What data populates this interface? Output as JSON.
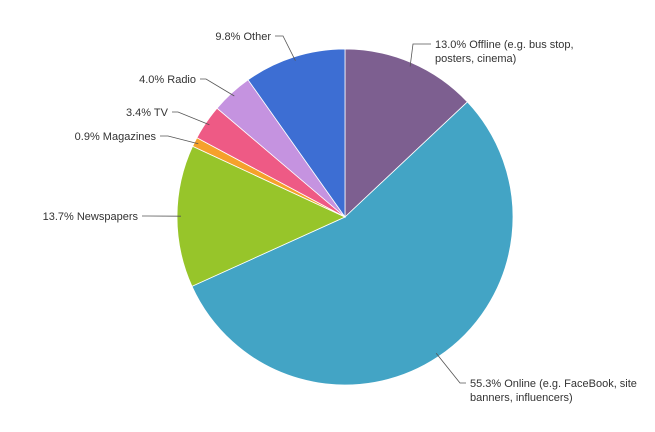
{
  "chart_data": {
    "type": "pie",
    "title": "",
    "slices": [
      {
        "lines": [
          "13.0% Offline (e.g. bus stop,",
          "posters, cinema)"
        ],
        "value": 13.0,
        "color": "#7d5f90"
      },
      {
        "lines": [
          "55.3% Online (e.g. FaceBook, site",
          "banners, influencers)"
        ],
        "value": 55.3,
        "color": "#43a4c5"
      },
      {
        "lines": [
          "13.7% Newspapers"
        ],
        "value": 13.7,
        "color": "#97c52a"
      },
      {
        "lines": [
          "0.9% Magazines"
        ],
        "value": 0.9,
        "color": "#f5a12b"
      },
      {
        "lines": [
          "3.4% TV"
        ],
        "value": 3.4,
        "color": "#ee5a85"
      },
      {
        "lines": [
          "4.0% Radio"
        ],
        "value": 4.0,
        "color": "#c593e0"
      },
      {
        "lines": [
          "9.8% Other"
        ],
        "value": 9.8,
        "color": "#3d6ed3"
      }
    ]
  }
}
